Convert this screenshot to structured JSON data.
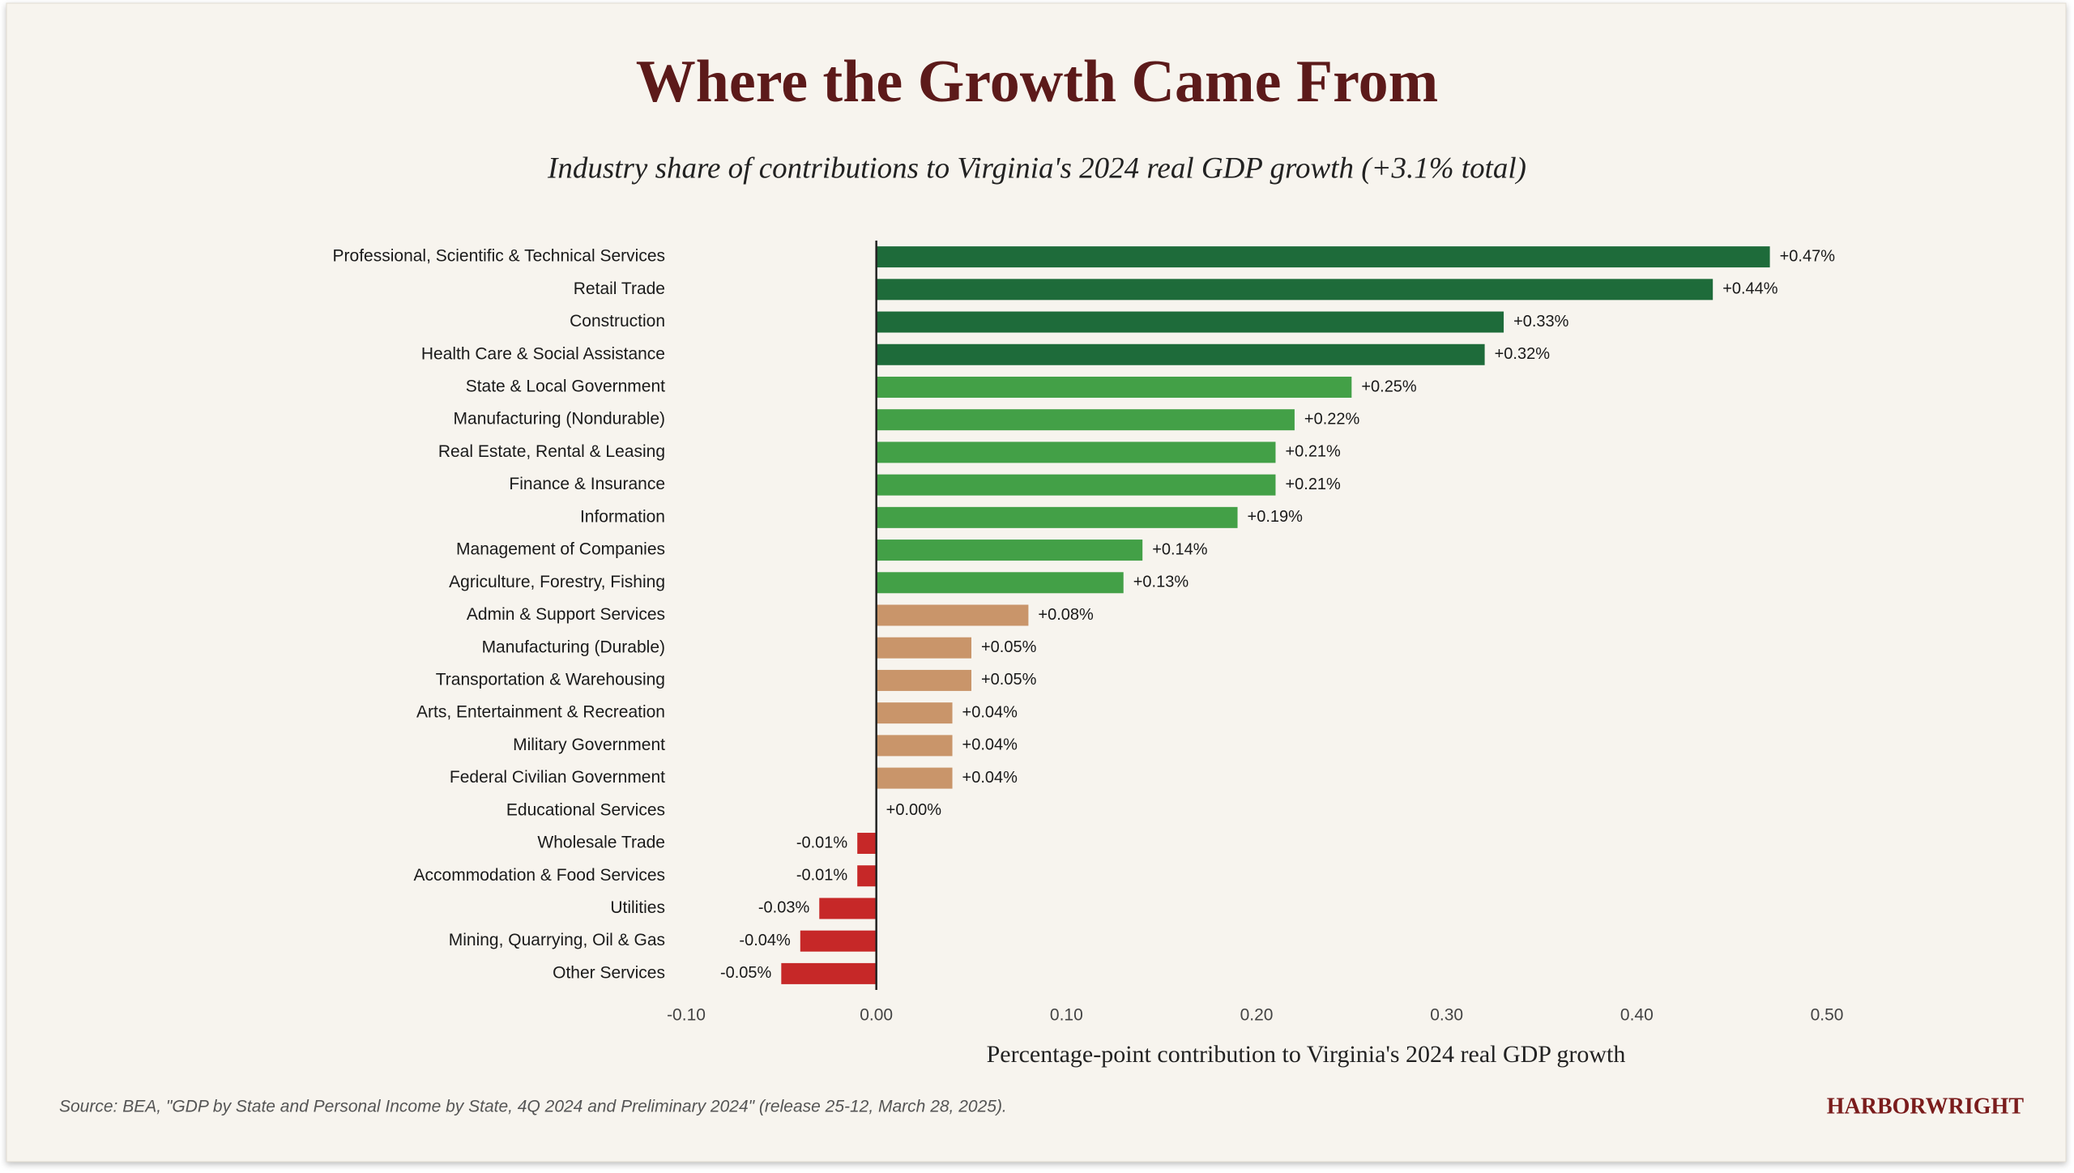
{
  "chart_data": {
    "type": "barh",
    "title": "Where the Growth Came From",
    "subtitle": "Industry share of contributions to Virginia's 2024 real GDP growth (+3.1% total)",
    "x_label": "Percentage-point contribution to Virginia's 2024 real GDP growth",
    "source": "Source: BEA, \"GDP by State and Personal Income by State, 4Q 2024 and Preliminary 2024\" (release 25-12, March 28, 2025).",
    "brand": "HARBORWRIGHT",
    "categories": [
      "Professional, Scientific & Technical Services",
      "Retail Trade",
      "Construction",
      "Health Care & Social Assistance",
      "State & Local Government",
      "Manufacturing (Nondurable)",
      "Real Estate, Rental & Leasing",
      "Finance & Insurance",
      "Information",
      "Management of Companies",
      "Agriculture, Forestry, Fishing",
      "Admin & Support Services",
      "Manufacturing (Durable)",
      "Transportation & Warehousing",
      "Arts, Entertainment & Recreation",
      "Military Government",
      "Federal Civilian Government",
      "Educational Services",
      "Wholesale Trade",
      "Accommodation & Food Services",
      "Utilities",
      "Mining, Quarrying, Oil & Gas",
      "Other Services"
    ],
    "values": [
      0.47,
      0.44,
      0.33,
      0.32,
      0.25,
      0.22,
      0.21,
      0.21,
      0.19,
      0.14,
      0.13,
      0.08,
      0.05,
      0.05,
      0.04,
      0.04,
      0.04,
      0.0,
      -0.01,
      -0.01,
      -0.03,
      -0.04,
      -0.05
    ],
    "value_labels": [
      "+0.47%",
      "+0.44%",
      "+0.33%",
      "+0.32%",
      "+0.25%",
      "+0.22%",
      "+0.21%",
      "+0.21%",
      "+0.19%",
      "+0.14%",
      "+0.13%",
      "+0.08%",
      "+0.05%",
      "+0.05%",
      "+0.04%",
      "+0.04%",
      "+0.04%",
      "+0.00%",
      "-0.01%",
      "-0.01%",
      "-0.03%",
      "-0.04%",
      "-0.05%"
    ],
    "colors": [
      "#1e6b3a",
      "#1e6b3a",
      "#1e6b3a",
      "#1e6b3a",
      "#43a047",
      "#43a047",
      "#43a047",
      "#43a047",
      "#43a047",
      "#43a047",
      "#43a047",
      "#c9956a",
      "#c9956a",
      "#c9956a",
      "#c9956a",
      "#c9956a",
      "#c9956a",
      "#c9956a",
      "#c62828",
      "#c62828",
      "#c62828",
      "#c62828",
      "#c62828"
    ],
    "xlim": [
      -0.1,
      0.5
    ],
    "xticks": [
      {
        "value": -0.1,
        "label": "-0.10"
      },
      {
        "value": 0,
        "label": "0.00"
      },
      {
        "value": 0.1,
        "label": "0.10"
      },
      {
        "value": 0.2,
        "label": "0.20"
      },
      {
        "value": 0.3,
        "label": "0.30"
      },
      {
        "value": 0.4,
        "label": "0.40"
      },
      {
        "value": 0.5,
        "label": "0.50"
      }
    ],
    "grid": false
  }
}
